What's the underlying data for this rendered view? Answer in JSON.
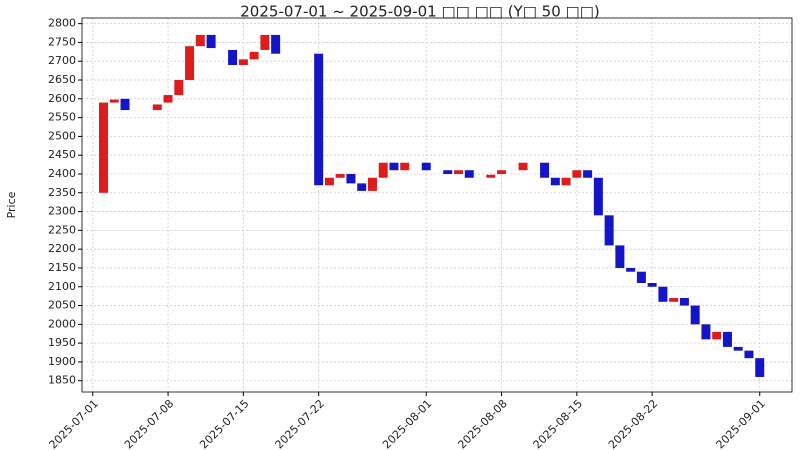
{
  "chart_data": {
    "type": "candlestick",
    "title": "2025-07-01 ~ 2025-09-01 □□ □□ (Y□ 50 □□)",
    "y_label": "Price",
    "x": [
      "2025-07-02",
      "2025-07-03",
      "2025-07-04",
      "2025-07-07",
      "2025-07-08",
      "2025-07-09",
      "2025-07-10",
      "2025-07-11",
      "2025-07-12",
      "2025-07-14",
      "2025-07-15",
      "2025-07-16",
      "2025-07-17",
      "2025-07-18",
      "2025-07-22",
      "2025-07-23",
      "2025-07-24",
      "2025-07-25",
      "2025-07-26",
      "2025-07-27",
      "2025-07-28",
      "2025-07-29",
      "2025-07-30",
      "2025-08-01",
      "2025-08-03",
      "2025-08-04",
      "2025-08-05",
      "2025-08-07",
      "2025-08-08",
      "2025-08-10",
      "2025-08-12",
      "2025-08-13",
      "2025-08-14",
      "2025-08-15",
      "2025-08-16",
      "2025-08-17",
      "2025-08-18",
      "2025-08-19",
      "2025-08-20",
      "2025-08-21",
      "2025-08-22",
      "2025-08-23",
      "2025-08-24",
      "2025-08-25",
      "2025-08-26",
      "2025-08-27",
      "2025-08-28",
      "2025-08-29",
      "2025-08-30",
      "2025-08-31",
      "2025-09-01"
    ],
    "open": [
      2350,
      2590,
      2600,
      2570,
      2590,
      2610,
      2650,
      2740,
      2770,
      2730,
      2690,
      2705,
      2730,
      2770,
      2720,
      2370,
      2390,
      2400,
      2375,
      2355,
      2390,
      2430,
      2410,
      2430,
      2410,
      2400,
      2410,
      2390,
      2400,
      2410,
      2430,
      2390,
      2370,
      2390,
      2410,
      2390,
      2290,
      2210,
      2150,
      2140,
      2110,
      2100,
      2060,
      2070,
      2050,
      2000,
      1960,
      1980,
      1940,
      1930,
      1910
    ],
    "close": [
      2590,
      2598,
      2570,
      2585,
      2610,
      2650,
      2740,
      2770,
      2735,
      2690,
      2705,
      2725,
      2770,
      2720,
      2370,
      2390,
      2400,
      2375,
      2355,
      2390,
      2430,
      2410,
      2430,
      2410,
      2400,
      2410,
      2390,
      2398,
      2410,
      2430,
      2390,
      2370,
      2390,
      2410,
      2390,
      2290,
      2210,
      2150,
      2140,
      2110,
      2100,
      2060,
      2070,
      2050,
      2000,
      1960,
      1980,
      1940,
      1930,
      1910,
      1860
    ],
    "up_color": "#dd1c1c",
    "down_color": "#1414c8",
    "xlim": [
      "2025-06-30",
      "2025-09-04"
    ],
    "xticks": [
      "2025-07-01",
      "2025-07-08",
      "2025-07-15",
      "2025-07-22",
      "2025-08-01",
      "2025-08-08",
      "2025-08-15",
      "2025-08-22",
      "2025-09-01"
    ],
    "ylim": [
      1820,
      2815
    ],
    "yticks": [
      1850,
      1900,
      1950,
      2000,
      2050,
      2100,
      2150,
      2200,
      2250,
      2300,
      2350,
      2400,
      2450,
      2500,
      2550,
      2600,
      2650,
      2700,
      2750,
      2800
    ],
    "grid": true
  }
}
